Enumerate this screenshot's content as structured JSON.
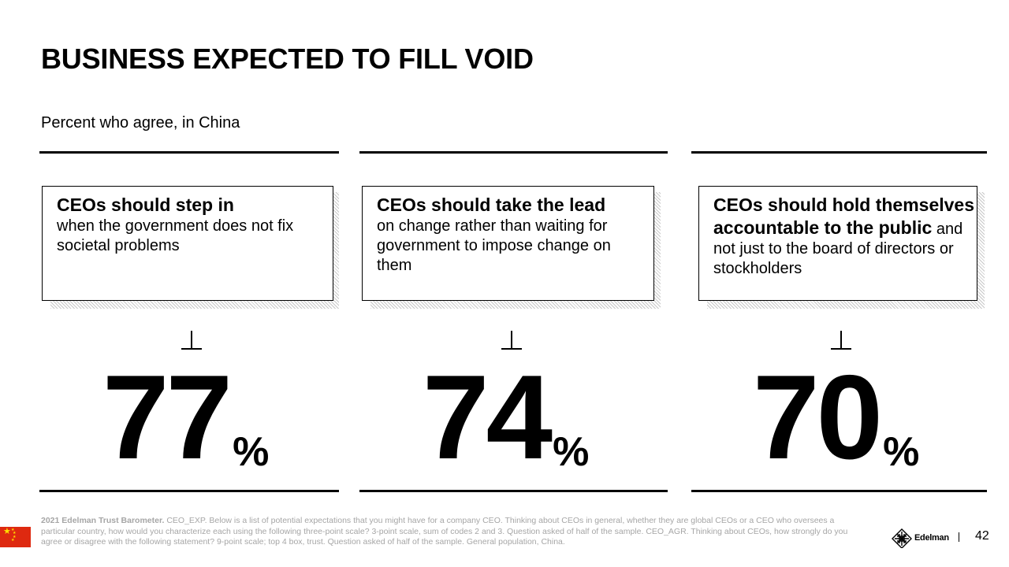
{
  "title": "BUSINESS EXPECTED TO FILL VOID",
  "subtitle": "Percent who agree, in China",
  "columns": [
    {
      "bold": "CEOs should step in",
      "text": "when the government does not fix societal problems",
      "value": "77",
      "unit": "%"
    },
    {
      "bold": "CEOs should take the lead",
      "text": "on change rather than waiting for government to impose change on them",
      "value": "74",
      "unit": "%"
    },
    {
      "bold": "CEOs should hold themselves accountable to the public",
      "text": "and not just to the board of directors or stockholders",
      "value": "70",
      "unit": "%"
    }
  ],
  "footnote": {
    "lead": "2021 Edelman Trust Barometer.",
    "text": "CEO_EXP. Below is a list of potential expectations that you might have for a company CEO. Thinking about CEOs in general, whether they are global CEOs or a CEO who oversees a particular country, how would you characterize each using the following three-point scale? 3-point scale, sum of codes 2 and 3. Question asked of half of the sample. CEO_AGR. Thinking about CEOs, how strongly do you agree or disagree with the following statement? 9-point scale; top 4 box, trust. Question asked of half of the sample. General population, China."
  },
  "flag_icon": "china-flag-icon",
  "logo_text": "Edelman",
  "page_number": "42"
}
